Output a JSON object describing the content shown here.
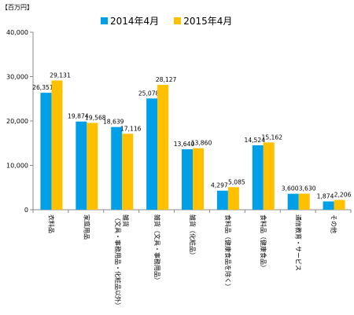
{
  "chart_data": {
    "type": "bar",
    "unit_label": "【百万円】",
    "categories": [
      "衣料品",
      "家庭用品",
      "雑貨（文具・事務用品・化粧品以外）",
      "雑貨（文具・事務用品）",
      "雑貨（化粧品）",
      "食料品（健康食品を除く）",
      "食料品（健康食品）",
      "通信教育・サービス",
      "その他"
    ],
    "category_lines": [
      [
        "衣料品"
      ],
      [
        "家庭用品"
      ],
      [
        "雑貨",
        "（文具・事務用品・化粧品以外）"
      ],
      [
        "雑貨（文具・事務用品）"
      ],
      [
        "雑貨（化粧品）"
      ],
      [
        "食料品（健康食品を除く）"
      ],
      [
        "食料品（健康食品）"
      ],
      [
        "通信教育・サービス"
      ],
      [
        "その他"
      ]
    ],
    "series": [
      {
        "name": "2014年4月",
        "color": "#00a0e9",
        "values": [
          26351,
          19874,
          18639,
          25078,
          13640,
          4297,
          14524,
          3600,
          1874
        ]
      },
      {
        "name": "2015年4月",
        "color": "#ffc000",
        "values": [
          29131,
          19568,
          17116,
          28127,
          13860,
          5085,
          15162,
          3630,
          2206
        ]
      }
    ],
    "data_labels": [
      [
        "26,351",
        "19,874",
        "18,639",
        "25,078",
        "13,640",
        "4,297",
        "14,524",
        "3,600",
        "1,874"
      ],
      [
        "29,131",
        "19,568",
        "17,116",
        "28,127",
        "13,860",
        "5,085",
        "15,162",
        "3,630",
        "2,206"
      ]
    ],
    "ylim": [
      0,
      40000
    ],
    "yticks": [
      0,
      10000,
      20000,
      30000,
      40000
    ],
    "ytick_labels": [
      "0",
      "10,000",
      "20,000",
      "30,000",
      "40,000"
    ],
    "grid": false,
    "legend_position": "top-center"
  }
}
